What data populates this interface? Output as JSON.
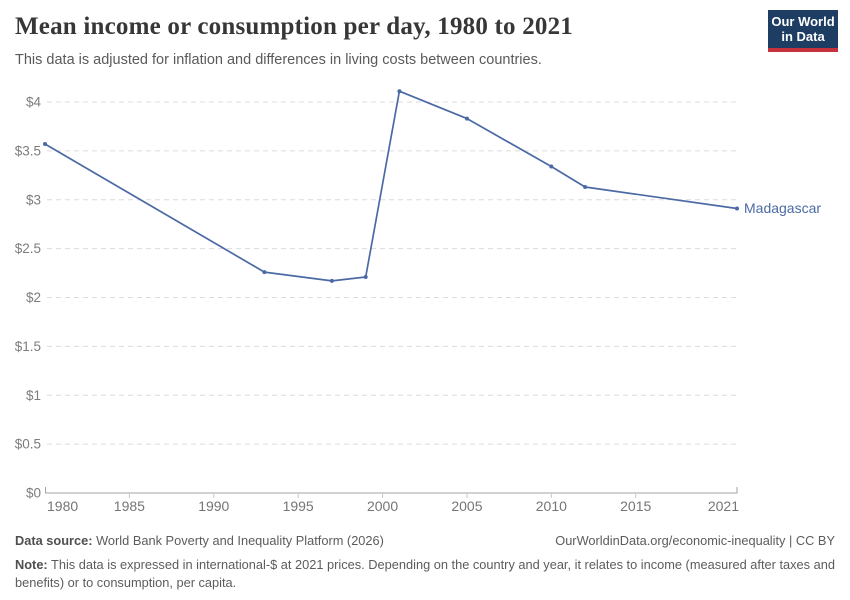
{
  "header": {
    "title": "Mean income or consumption per day, 1980 to 2021",
    "subtitle": "This data is adjusted for inflation and differences in living costs between countries."
  },
  "logo": {
    "line1": "Our World",
    "line2": "in Data",
    "background_color": "#1d3d63",
    "bar_color": "#c5323c"
  },
  "chart_data": {
    "type": "line",
    "title": "Mean income or consumption per day, 1980 to 2021",
    "series": [
      {
        "name": "Madagascar",
        "color": "#4b6aa5",
        "x": [
          1980,
          1993,
          1997,
          1999,
          2001,
          2005,
          2010,
          2012,
          2021
        ],
        "y": [
          3.57,
          2.26,
          2.17,
          2.21,
          4.11,
          3.83,
          3.34,
          3.13,
          2.91
        ]
      }
    ],
    "end_label": "Madagascar",
    "x_ticks": [
      1980,
      1985,
      1990,
      1995,
      2000,
      2005,
      2010,
      2015,
      2021
    ],
    "y_ticks": [
      0,
      0.5,
      1,
      1.5,
      2,
      2.5,
      3,
      3.5,
      4
    ],
    "y_prefix": "$",
    "xlim": [
      1980,
      2021
    ],
    "ylim": [
      0,
      4
    ],
    "grid": "horizontal-dashed",
    "gridline_color": "#dcdcdc",
    "axis_color": "#a3a3a3",
    "tick_label_color": "#757575",
    "legend_position": "end-of-line"
  },
  "footer": {
    "source_label": "Data source:",
    "source_text": " World Bank Poverty and Inequality Platform (2026)",
    "link": "OurWorldinData.org/economic-inequality | CC BY",
    "note_label": "Note:",
    "note_text": " This data is expressed in international-$ at 2021 prices. Depending on the country and year, it relates to income (measured after taxes and benefits) or to consumption, per capita."
  }
}
